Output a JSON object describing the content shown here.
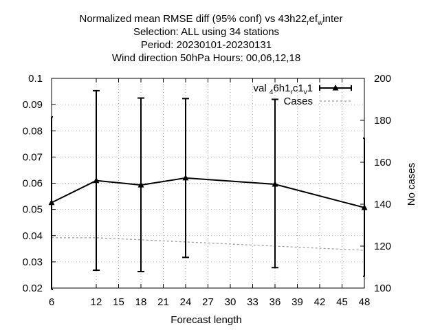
{
  "chart_data": {
    "type": "line",
    "title_lines": [
      "Normalized mean RMSE diff (95% conf) vs 43h22",
      "Selection: ALL using    34 stations",
      "Period: 20230101-20230131",
      "Wind direction 50hPa   Hours:  00,06,12,18"
    ],
    "title_subscripts": [
      "r",
      "ef",
      "w",
      "inter"
    ],
    "xlabel": "Forecast length",
    "ylabel": "",
    "y2label": "No cases",
    "xlim": [
      6,
      48
    ],
    "ylim": [
      0.02,
      0.1
    ],
    "y2lim": [
      100,
      200
    ],
    "x_ticks": [
      "6",
      "12",
      "15",
      "18",
      "21",
      "24",
      "27",
      "30",
      "33",
      "36",
      "39",
      "42",
      "45",
      "48"
    ],
    "y_ticks": [
      "0.02",
      "0.03",
      "0.04",
      "0.05",
      "0.06",
      "0.07",
      "0.08",
      "0.09",
      "0.1"
    ],
    "y2_ticks": [
      "100",
      "120",
      "140",
      "160",
      "180",
      "200"
    ],
    "grid": true,
    "legend_position": "top-right",
    "legend": {
      "series_label_parts": [
        "val",
        "4",
        "6h1",
        "r",
        "c1",
        "v",
        "1"
      ],
      "cases_label": "Cases"
    },
    "series": [
      {
        "x": [
          6,
          12,
          18,
          24,
          36,
          48
        ],
        "values": [
          0.0526,
          0.061,
          0.0593,
          0.062,
          0.0596,
          0.0507
        ],
        "err_low": [
          0.0195,
          0.0268,
          0.0263,
          0.0317,
          0.0278,
          0.0245
        ],
        "err_high": [
          0.0853,
          0.0953,
          0.0925,
          0.0923,
          0.092,
          0.0772
        ],
        "color": "#000000"
      },
      {
        "name": "Cases",
        "x": [
          6,
          12,
          18,
          24,
          30,
          36,
          42,
          48
        ],
        "values": [
          124,
          124,
          123,
          122,
          121,
          120,
          119,
          118
        ],
        "axis": "right",
        "color": "#999999"
      }
    ]
  }
}
